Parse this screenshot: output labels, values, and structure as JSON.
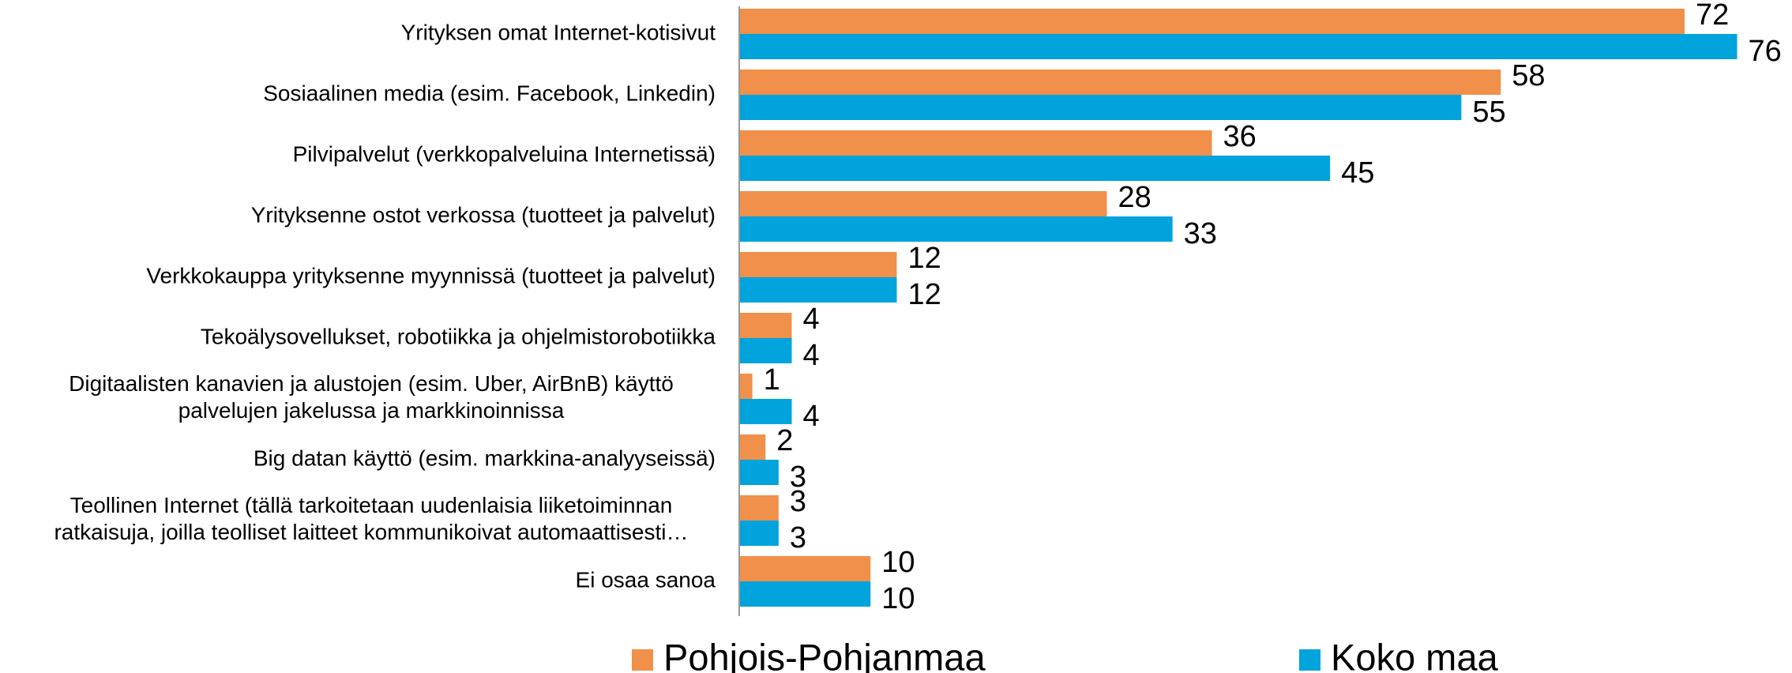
{
  "chart_data": {
    "type": "hbar",
    "categories": [
      "Yrityksen omat Internet-kotisivut",
      "Sosiaalinen media (esim. Facebook, Linkedin)",
      "Pilvipalvelut  (verkkopalveluina Internetissä)",
      "Yrityksenne ostot verkossa (tuotteet ja palvelut)",
      "Verkkokauppa yrityksenne myynnissä (tuotteet ja palvelut)",
      "Tekoälysovellukset, robotiikka ja ohjelmistorobotiikka",
      "Digitaalisten kanavien ja alustojen (esim. Uber, AirBnB) käyttö\npalvelujen jakelussa ja markkinoinnissa",
      "Big datan käyttö (esim. markkina-analyyseissä)",
      "Teollinen Internet (tällä tarkoitetaan uudenlaisia liiketoiminnan\nratkaisuja, joilla teolliset laitteet kommunikoivat automaattisesti…",
      "Ei osaa sanoa"
    ],
    "series": [
      {
        "name": "Pohjois-Pohjanmaa",
        "color": "#f0904a",
        "values": [
          72,
          58,
          36,
          28,
          12,
          4,
          1,
          2,
          3,
          10
        ]
      },
      {
        "name": "Koko maa",
        "color": "#00a3dc",
        "values": [
          76,
          55,
          45,
          33,
          12,
          4,
          4,
          3,
          3,
          10
        ]
      }
    ],
    "xlim": [
      0,
      80
    ]
  }
}
